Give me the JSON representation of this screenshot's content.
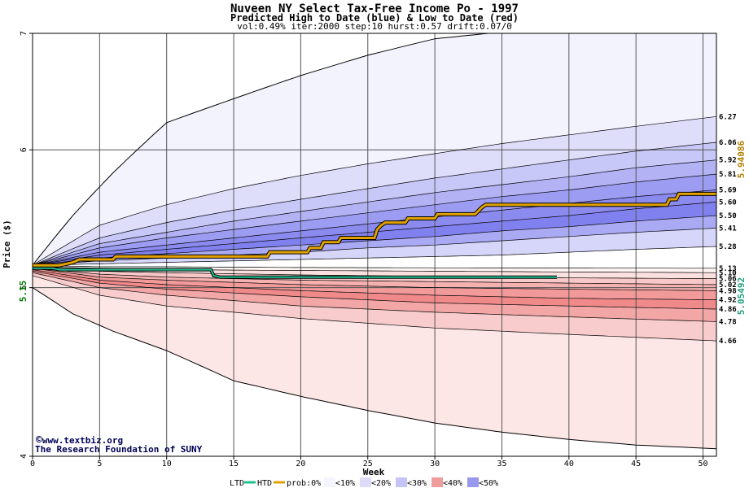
{
  "chart_data": {
    "type": "area",
    "title": "Nuveen NY Select Tax-Free Income Po - 1997",
    "subtitle": "Predicted High to Date (blue) &  Low to Date (red)",
    "params": "vol:0.49% iter:2000 step:10 hurst:0.57 drift:0.07/0",
    "xlabel": "Week",
    "ylabel": "Price ($)",
    "xlim": [
      0,
      51
    ],
    "ylim": [
      4,
      7
    ],
    "y_scale": "log",
    "x_ticks": [
      "0",
      "5",
      "10",
      "15",
      "20",
      "25",
      "30",
      "35",
      "40",
      "45",
      "50"
    ],
    "y_ticks": [
      "4",
      "5",
      "6",
      "7"
    ],
    "start_price_label": "5.15",
    "htd_value_label": "5.94086",
    "ltd_value_label": "5.05492",
    "colors": {
      "htd": "#e0a000",
      "ltd": "#20c090",
      "start": "#007700"
    },
    "high_band_right_labels": [
      "6.27",
      "6.06",
      "5.92",
      "5.81",
      "5.69",
      "5.60",
      "5.50",
      "5.41",
      "5.28"
    ],
    "low_band_right_labels": [
      "5.13",
      "5.10",
      "5.06",
      "5.02",
      "4.98",
      "4.92",
      "4.86",
      "4.78",
      "4.66"
    ],
    "high_quantiles": [
      {
        "level": "outer",
        "x": [
          0,
          3,
          6,
          10,
          15,
          20,
          25,
          30,
          34
        ],
        "y": [
          5.15,
          5.5,
          5.82,
          6.22,
          6.42,
          6.62,
          6.8,
          6.95,
          7.0
        ]
      },
      {
        "level": "6.27",
        "x": [
          0,
          5,
          10,
          15,
          20,
          25,
          30,
          35,
          40,
          45,
          51
        ],
        "y": [
          5.15,
          5.43,
          5.58,
          5.7,
          5.8,
          5.89,
          5.97,
          6.05,
          6.12,
          6.19,
          6.27
        ]
      },
      {
        "level": "6.06",
        "x": [
          0,
          5,
          10,
          15,
          20,
          25,
          30,
          35,
          40,
          45,
          51
        ],
        "y": [
          5.15,
          5.34,
          5.45,
          5.54,
          5.62,
          5.7,
          5.78,
          5.85,
          5.92,
          5.99,
          6.06
        ]
      },
      {
        "level": "5.92",
        "x": [
          0,
          5,
          10,
          15,
          20,
          25,
          30,
          35,
          40,
          45,
          51
        ],
        "y": [
          5.15,
          5.3,
          5.38,
          5.46,
          5.53,
          5.6,
          5.67,
          5.73,
          5.79,
          5.86,
          5.92
        ]
      },
      {
        "level": "5.81",
        "x": [
          0,
          5,
          10,
          15,
          20,
          25,
          30,
          35,
          40,
          45,
          51
        ],
        "y": [
          5.15,
          5.27,
          5.34,
          5.4,
          5.46,
          5.52,
          5.58,
          5.64,
          5.69,
          5.75,
          5.81
        ]
      },
      {
        "level": "5.69",
        "x": [
          0,
          5,
          10,
          15,
          20,
          25,
          30,
          35,
          40,
          45,
          51
        ],
        "y": [
          5.15,
          5.24,
          5.29,
          5.34,
          5.39,
          5.44,
          5.49,
          5.54,
          5.59,
          5.64,
          5.69
        ]
      },
      {
        "level": "5.60",
        "x": [
          0,
          5,
          10,
          15,
          20,
          25,
          30,
          35,
          40,
          45,
          51
        ],
        "y": [
          5.15,
          5.22,
          5.26,
          5.3,
          5.34,
          5.38,
          5.42,
          5.46,
          5.5,
          5.55,
          5.6
        ]
      },
      {
        "level": "5.50",
        "x": [
          0,
          5,
          10,
          15,
          20,
          25,
          30,
          35,
          40,
          45,
          51
        ],
        "y": [
          5.15,
          5.2,
          5.23,
          5.26,
          5.29,
          5.32,
          5.35,
          5.39,
          5.42,
          5.46,
          5.5
        ]
      },
      {
        "level": "5.41",
        "x": [
          0,
          5,
          10,
          15,
          20,
          25,
          30,
          35,
          40,
          45,
          51
        ],
        "y": [
          5.15,
          5.18,
          5.2,
          5.22,
          5.24,
          5.27,
          5.29,
          5.32,
          5.35,
          5.38,
          5.41
        ]
      },
      {
        "level": "5.28",
        "x": [
          0,
          5,
          10,
          15,
          20,
          25,
          30,
          35,
          40,
          45,
          51
        ],
        "y": [
          5.15,
          5.16,
          5.17,
          5.18,
          5.19,
          5.2,
          5.21,
          5.22,
          5.24,
          5.26,
          5.28
        ]
      }
    ],
    "low_quantiles": [
      {
        "level": "5.13",
        "x": [
          0,
          5,
          10,
          20,
          30,
          40,
          51
        ],
        "y": [
          5.15,
          5.14,
          5.14,
          5.135,
          5.133,
          5.131,
          5.13
        ]
      },
      {
        "level": "5.10",
        "x": [
          0,
          5,
          10,
          20,
          30,
          40,
          51
        ],
        "y": [
          5.14,
          5.13,
          5.12,
          5.115,
          5.11,
          5.105,
          5.1
        ]
      },
      {
        "level": "5.06",
        "x": [
          0,
          5,
          10,
          20,
          30,
          40,
          51
        ],
        "y": [
          5.14,
          5.11,
          5.1,
          5.085,
          5.075,
          5.065,
          5.06
        ]
      },
      {
        "level": "5.02",
        "x": [
          0,
          5,
          10,
          20,
          30,
          40,
          51
        ],
        "y": [
          5.13,
          5.09,
          5.07,
          5.05,
          5.04,
          5.03,
          5.02
        ]
      },
      {
        "level": "4.98",
        "x": [
          0,
          5,
          10,
          20,
          30,
          40,
          51
        ],
        "y": [
          5.13,
          5.07,
          5.05,
          5.02,
          5.0,
          4.99,
          4.98
        ]
      },
      {
        "level": "4.92",
        "x": [
          0,
          5,
          10,
          20,
          30,
          40,
          51
        ],
        "y": [
          5.12,
          5.05,
          5.02,
          4.98,
          4.95,
          4.93,
          4.92
        ]
      },
      {
        "level": "4.86",
        "x": [
          0,
          5,
          10,
          20,
          30,
          40,
          51
        ],
        "y": [
          5.11,
          5.03,
          4.99,
          4.94,
          4.9,
          4.88,
          4.86
        ]
      },
      {
        "level": "4.78",
        "x": [
          0,
          5,
          10,
          20,
          30,
          40,
          51
        ],
        "y": [
          5.1,
          5.0,
          4.95,
          4.88,
          4.84,
          4.81,
          4.78
        ]
      },
      {
        "level": "4.66",
        "x": [
          0,
          5,
          10,
          20,
          30,
          40,
          51
        ],
        "y": [
          5.08,
          4.95,
          4.88,
          4.8,
          4.74,
          4.7,
          4.66
        ]
      },
      {
        "level": "outer",
        "x": [
          0,
          3,
          6,
          10,
          15,
          20,
          25,
          30,
          35,
          40,
          45,
          51
        ],
        "y": [
          5.0,
          4.83,
          4.72,
          4.6,
          4.42,
          4.33,
          4.25,
          4.18,
          4.13,
          4.09,
          4.06,
          4.04
        ]
      }
    ],
    "htd_path": {
      "x": [
        0,
        2,
        3,
        3.5,
        6,
        6.2,
        17.5,
        17.7,
        20.5,
        20.7,
        21.5,
        21.7,
        22.8,
        23,
        25.5,
        25.7,
        26,
        26.3,
        27.8,
        28,
        30,
        30.2,
        33,
        33.3,
        33.5,
        33.8,
        47.3,
        47.5,
        48,
        48.2,
        51
      ],
      "y": [
        5.15,
        5.15,
        5.17,
        5.19,
        5.19,
        5.21,
        5.21,
        5.24,
        5.24,
        5.27,
        5.27,
        5.31,
        5.31,
        5.34,
        5.34,
        5.4,
        5.43,
        5.45,
        5.45,
        5.48,
        5.48,
        5.51,
        5.51,
        5.54,
        5.56,
        5.58,
        5.58,
        5.62,
        5.62,
        5.66,
        5.66
      ]
    },
    "ltd_path": {
      "x": [
        0,
        1.5,
        2,
        13.3,
        13.5,
        14,
        39,
        39.1
      ],
      "y": [
        5.13,
        5.13,
        5.12,
        5.12,
        5.08,
        5.07,
        5.07,
        5.07
      ]
    },
    "legend": {
      "ltd": "LTD",
      "htd": "HTD",
      "prob": "prob:0%",
      "buckets": [
        {
          "label": "<10%",
          "color": "#f4f4fe"
        },
        {
          "label": "<20%",
          "color": "#dcdcfa"
        },
        {
          "label": "<30%",
          "color": "#c4c4f6"
        },
        {
          "label": "<40%",
          "color": "#ee9c9c"
        },
        {
          "label": "<50%",
          "color": "#9898ee"
        }
      ]
    },
    "credit_url": "www.textbiz.org",
    "credit_org": "The Research Foundation of SUNY",
    "grid": true,
    "legend_position": "bottom"
  }
}
